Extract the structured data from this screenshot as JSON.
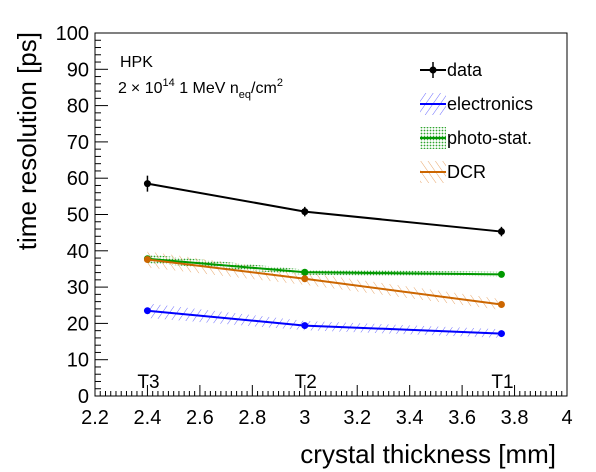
{
  "chart_data": {
    "type": "line",
    "xlabel": "crystal thickness [mm]",
    "ylabel": "time resolution [ps]",
    "xlim": [
      2.2,
      4.0
    ],
    "ylim": [
      0,
      100
    ],
    "x_ticks": [
      "2.2",
      "2.4",
      "2.6",
      "2.8",
      "3",
      "3.2",
      "3.4",
      "3.6",
      "3.8",
      "4"
    ],
    "y_ticks": [
      "0",
      "10",
      "20",
      "30",
      "40",
      "50",
      "60",
      "70",
      "80",
      "90",
      "100"
    ],
    "grid": false,
    "legend_position": "top-right",
    "annotations": {
      "line1": "HPK",
      "line2_prefix": "2",
      "line2_times": "×",
      "line2_base": " 10",
      "line2_exp": "14",
      "line2_mid": " 1 MeV n",
      "line2_sub": "eq",
      "line2_unit": "/cm",
      "line2_unit_exp": "2"
    },
    "categories": [
      {
        "label": "T3",
        "x": 2.4
      },
      {
        "label": "T2",
        "x": 3.0
      },
      {
        "label": "T1",
        "x": 3.75
      }
    ],
    "x": [
      2.4,
      3.0,
      3.75
    ],
    "series": [
      {
        "name": "data",
        "color": "#000000",
        "style": "markers-errorbars",
        "values": [
          58.5,
          50.8,
          45.3
        ],
        "errors": [
          2.2,
          1.3,
          1.3
        ]
      },
      {
        "name": "electronics",
        "color": "#0000ff",
        "style": "band",
        "hatch": "#6a6aff",
        "values": [
          23.5,
          19.4,
          17.2
        ],
        "band": [
          2.0,
          1.3,
          1.2
        ]
      },
      {
        "name": "photo-stat.",
        "color": "#009900",
        "style": "band",
        "hatch": "#2fa52f",
        "values": [
          37.8,
          34.1,
          33.5
        ],
        "band": [
          1.2,
          0.7,
          0.7
        ]
      },
      {
        "name": "DCR",
        "color": "#cc6600",
        "style": "band",
        "hatch": "#e8a66a",
        "values": [
          37.6,
          32.3,
          25.2
        ],
        "band": [
          2.2,
          1.7,
          1.5
        ]
      }
    ]
  }
}
